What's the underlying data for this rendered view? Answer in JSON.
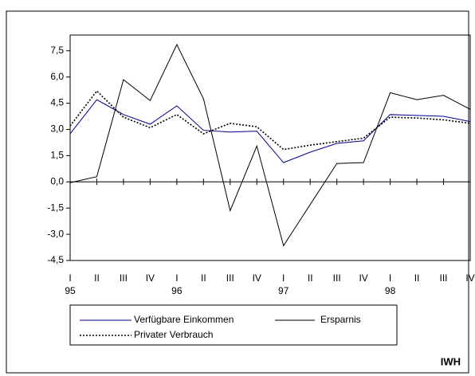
{
  "chart_data": {
    "type": "line",
    "categories": [
      "I",
      "II",
      "III",
      "IV",
      "I",
      "II",
      "III",
      "IV",
      "I",
      "II",
      "III",
      "IV",
      "I",
      "II",
      "III",
      "IV"
    ],
    "years": [
      "95",
      null,
      null,
      null,
      "96",
      null,
      null,
      null,
      "97",
      null,
      null,
      null,
      "98",
      null,
      null,
      null
    ],
    "series": [
      {
        "name": "Verfügbare Einkommen",
        "color": "#00008b",
        "dash": "solid",
        "values": [
          2.75,
          4.7,
          3.85,
          3.3,
          4.35,
          2.95,
          2.85,
          2.9,
          1.1,
          1.7,
          2.2,
          2.35,
          3.85,
          3.8,
          3.75,
          3.45
        ]
      },
      {
        "name": "Ersparnis",
        "color": "#000000",
        "dash": "solid",
        "values": [
          -0.05,
          0.3,
          5.85,
          4.65,
          7.85,
          4.75,
          -1.65,
          2.05,
          -3.65,
          -1.3,
          1.05,
          1.1,
          5.1,
          4.7,
          4.95,
          4.15
        ]
      },
      {
        "name": "Privater Verbrauch",
        "color": "#000000",
        "dash": "dotted",
        "values": [
          3.2,
          5.2,
          3.7,
          3.1,
          3.85,
          2.75,
          3.35,
          3.15,
          1.85,
          2.1,
          2.3,
          2.5,
          3.7,
          3.65,
          3.55,
          3.35
        ]
      }
    ],
    "ylim": [
      -4.5,
      8.4
    ],
    "yticks": [
      {
        "value": -4.5,
        "label": "-4,5"
      },
      {
        "value": -3,
        "label": "-3,0"
      },
      {
        "value": -1.5,
        "label": "-1,5"
      },
      {
        "value": 0,
        "label": "0,0"
      },
      {
        "value": 1.5,
        "label": "1,5"
      },
      {
        "value": 3,
        "label": "3,0"
      },
      {
        "value": 4.5,
        "label": "4,5"
      },
      {
        "value": 6,
        "label": "6,0"
      },
      {
        "value": 7.5,
        "label": "7,5"
      }
    ],
    "source": "IWH"
  }
}
